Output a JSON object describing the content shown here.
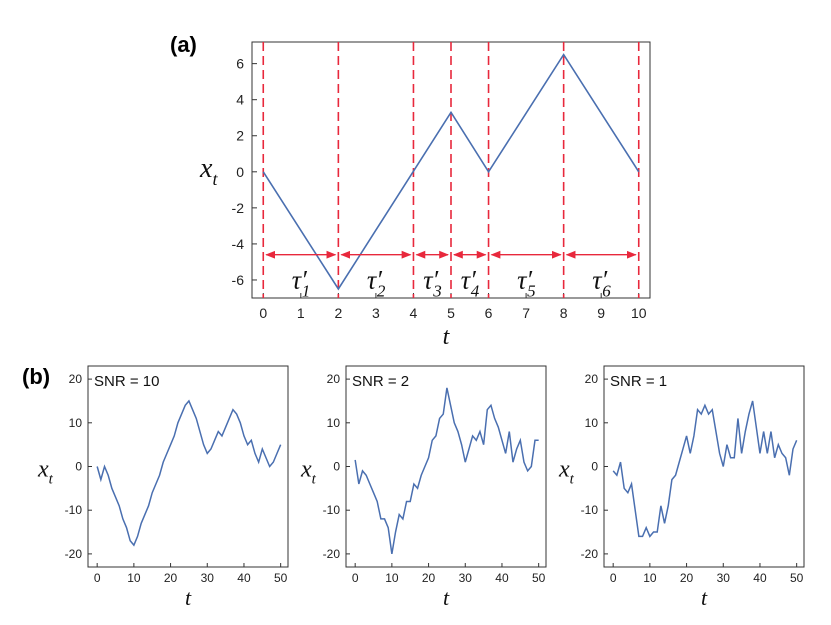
{
  "panel_a": {
    "label": "(a)",
    "xlabel": "t",
    "ylabel": "x",
    "ylabel_sub": "t",
    "change_points": [
      0,
      2,
      4,
      5,
      6,
      8,
      10
    ],
    "intervals": [
      {
        "from": 0,
        "to": 2,
        "label": "τ′",
        "sub": "1"
      },
      {
        "from": 2,
        "to": 4,
        "label": "τ′",
        "sub": "2"
      },
      {
        "from": 4,
        "to": 5,
        "label": "τ′",
        "sub": "3"
      },
      {
        "from": 5,
        "to": 6,
        "label": "τ′",
        "sub": "4"
      },
      {
        "from": 6,
        "to": 8,
        "label": "τ′",
        "sub": "5"
      },
      {
        "from": 8,
        "to": 10,
        "label": "τ′",
        "sub": "6"
      }
    ],
    "colors": {
      "line": "#4a6fb0",
      "change_point": "#e8283c",
      "arrow": "#e8283c"
    }
  },
  "panel_b": {
    "label": "(b)",
    "xlabel": "t",
    "ylabel": "x",
    "ylabel_sub": "t"
  },
  "chart_data": [
    {
      "type": "line",
      "panel": "a",
      "xlabel": "t",
      "ylabel": "x_t",
      "xlim": [
        -0.3,
        10.3
      ],
      "ylim": [
        -7,
        7.2
      ],
      "xticks": [
        0,
        1,
        2,
        3,
        4,
        5,
        6,
        7,
        8,
        9,
        10
      ],
      "yticks": [
        -6,
        -4,
        -2,
        0,
        2,
        4,
        6
      ],
      "x": [
        0,
        2,
        5,
        6,
        8,
        10
      ],
      "y": [
        0,
        -6.5,
        3.3,
        0,
        6.5,
        0
      ]
    },
    {
      "type": "line",
      "panel": "b1",
      "title": "SNR = 10",
      "xlabel": "t",
      "ylabel": "x_t",
      "xlim": [
        -2.5,
        52
      ],
      "ylim": [
        -23,
        23
      ],
      "xticks": [
        0,
        10,
        20,
        30,
        40,
        50
      ],
      "yticks": [
        -20,
        -10,
        0,
        10,
        20
      ],
      "y": [
        0,
        -3,
        0,
        -2,
        -5,
        -7,
        -9,
        -12,
        -14,
        -17,
        -18,
        -16,
        -13,
        -11,
        -9,
        -6,
        -4,
        -2,
        1,
        3,
        5,
        7,
        10,
        12,
        14,
        15,
        13,
        11,
        8,
        5,
        3,
        4,
        6,
        8,
        7,
        9,
        11,
        13,
        12,
        10,
        7,
        5,
        6,
        3,
        1,
        4,
        2,
        0,
        1,
        3,
        5
      ]
    },
    {
      "type": "line",
      "panel": "b2",
      "title": "SNR = 2",
      "xlabel": "t",
      "ylabel": "x_t",
      "xlim": [
        -2.5,
        52
      ],
      "ylim": [
        -23,
        23
      ],
      "xticks": [
        0,
        10,
        20,
        30,
        40,
        50
      ],
      "yticks": [
        -20,
        -10,
        0,
        10,
        20
      ],
      "y": [
        1.5,
        -4,
        -1,
        -2,
        -4,
        -6,
        -8,
        -12,
        -12,
        -14,
        -20,
        -15,
        -11,
        -12,
        -8,
        -8,
        -4,
        -5,
        -2,
        0,
        2,
        6,
        7,
        11,
        12,
        18,
        14,
        10,
        8,
        5,
        1,
        4,
        7,
        6,
        8,
        5,
        13,
        14,
        11,
        9,
        6,
        3,
        8,
        1,
        4,
        6,
        1,
        -1,
        0,
        6,
        6
      ]
    },
    {
      "type": "line",
      "panel": "b3",
      "title": "SNR = 1",
      "xlabel": "t",
      "ylabel": "x_t",
      "xlim": [
        -2.5,
        52
      ],
      "ylim": [
        -23,
        23
      ],
      "xticks": [
        0,
        10,
        20,
        30,
        40,
        50
      ],
      "yticks": [
        -20,
        -10,
        0,
        10,
        20
      ],
      "y": [
        -1,
        -2,
        1,
        -5,
        -6,
        -4,
        -10,
        -16,
        -16,
        -14,
        -16,
        -15,
        -15,
        -9,
        -13,
        -9,
        -3,
        -2,
        1,
        4,
        7,
        3,
        7,
        13,
        12,
        14,
        12,
        13,
        8,
        3,
        0,
        5,
        2,
        2,
        11,
        3,
        8,
        12,
        15,
        9,
        3,
        8,
        3,
        8,
        2,
        5,
        3,
        2,
        -2,
        4,
        6
      ]
    }
  ]
}
